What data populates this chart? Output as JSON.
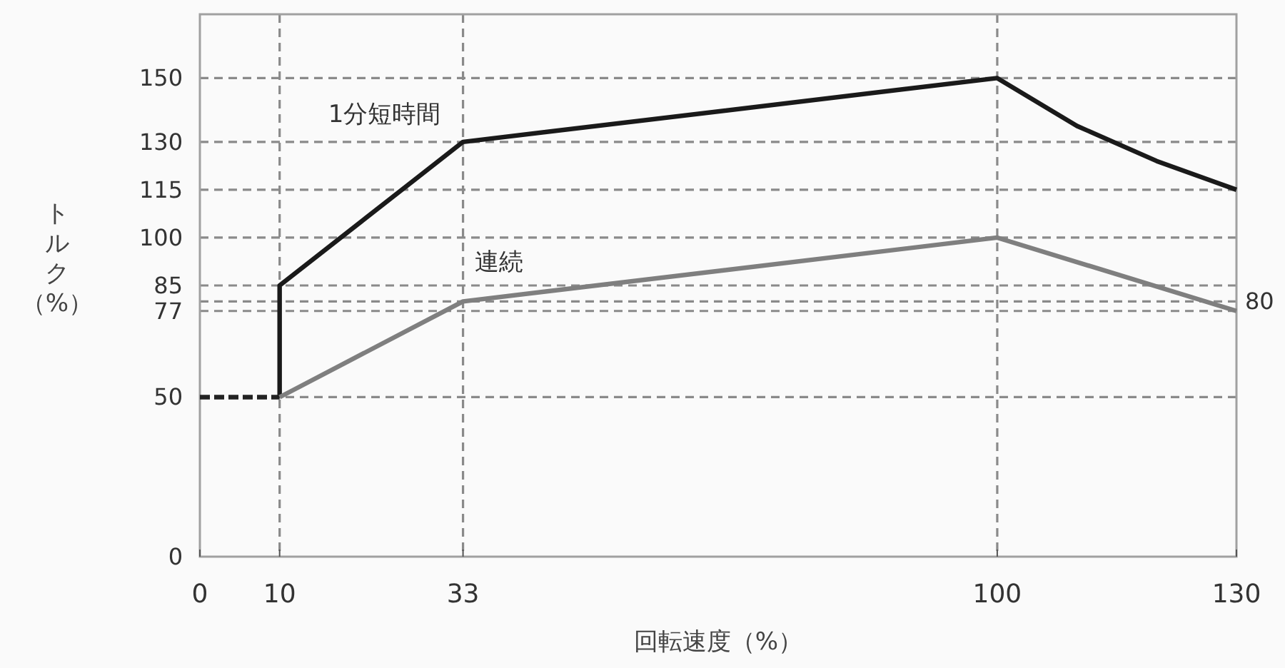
{
  "chart_data": {
    "type": "line",
    "xlabel": "回転速度（%）",
    "ylabel": "トルク（%）",
    "xlim": [
      0,
      130
    ],
    "xticks": [
      0,
      10,
      33,
      100,
      130
    ],
    "ylim": [
      0,
      170
    ],
    "yticks": [
      0,
      50,
      77,
      85,
      100,
      115,
      130,
      150
    ],
    "ref_lines": [
      {
        "axis": "y",
        "value": 80,
        "label": "80",
        "color": "#8a8a8a",
        "line_style": "dashed"
      }
    ],
    "grid": true,
    "line_style": "solid",
    "marker": "none",
    "series": [
      {
        "color": "#222222",
        "x": [
          0,
          10
        ],
        "values": [
          50,
          50
        ],
        "line_style": "dashed"
      },
      {
        "name": "1分短時間",
        "color": "#1a1a1a",
        "x": [
          10,
          10,
          33,
          100,
          110,
          120,
          130
        ],
        "values": [
          50,
          85,
          130,
          150,
          135,
          124,
          115
        ]
      },
      {
        "name": "連続",
        "color": "#7f7f7f",
        "x": [
          10,
          33,
          100,
          130
        ],
        "values": [
          50,
          80,
          100,
          77
        ]
      }
    ]
  }
}
